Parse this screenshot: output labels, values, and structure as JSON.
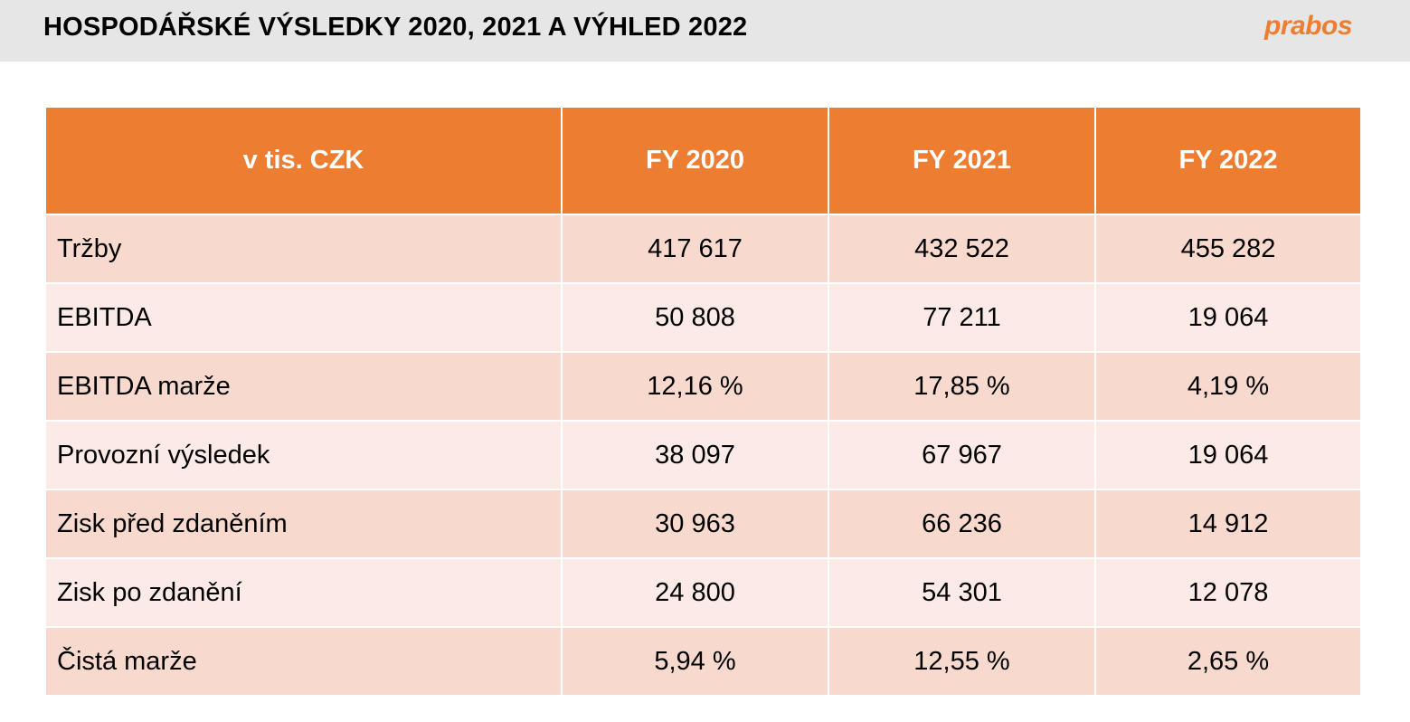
{
  "header": {
    "title": "HOSPODÁŘSKÉ VÝSLEDKY 2020, 2021 A VÝHLED 2022",
    "logo_text": "prabos",
    "background_color": "#e7e6e6",
    "logo_color": "#ed7d31"
  },
  "table": {
    "header_color": "#ed7d31",
    "columns": [
      "v tis. CZK",
      "FY 2020",
      "FY 2021",
      "FY 2022"
    ],
    "rows": [
      {
        "label": "Tržby",
        "values": [
          "417 617",
          "432 522",
          "455 282"
        ]
      },
      {
        "label": "EBITDA",
        "values": [
          "50 808",
          "77 211",
          "19 064"
        ]
      },
      {
        "label": "EBITDA marže",
        "values": [
          "12,16 %",
          "17,85 %",
          "4,19 %"
        ]
      },
      {
        "label": "Provozní výsledek",
        "values": [
          "38 097",
          "67 967",
          "19 064"
        ]
      },
      {
        "label": "Zisk před zdaněním",
        "values": [
          "30 963",
          "66 236",
          "14 912"
        ]
      },
      {
        "label": "Zisk po zdanění",
        "values": [
          "24 800",
          "54 301",
          "12 078"
        ]
      },
      {
        "label": "Čistá marže",
        "values": [
          "5,94 %",
          "12,55 %",
          "2,65 %"
        ]
      }
    ]
  }
}
